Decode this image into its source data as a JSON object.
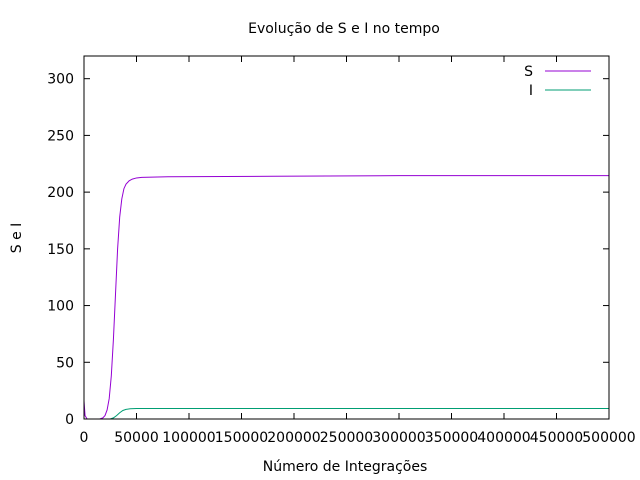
{
  "chart_data": {
    "type": "line",
    "title": "Evolução de S e I no tempo",
    "xlabel": "Número de Integrações",
    "ylabel": "S e I",
    "xlim": [
      0,
      500000
    ],
    "ylim": [
      0,
      320
    ],
    "xticks": [
      0,
      50000,
      100000,
      150000,
      200000,
      250000,
      300000,
      350000,
      400000,
      450000,
      500000
    ],
    "yticks": [
      0,
      50,
      100,
      150,
      200,
      250,
      300
    ],
    "grid": false,
    "legend_position": "top-right",
    "series": [
      {
        "name": "S",
        "color": "#9400d3",
        "points": [
          [
            0,
            16
          ],
          [
            1000,
            3
          ],
          [
            3000,
            0
          ],
          [
            15000,
            0
          ],
          [
            18000,
            1
          ],
          [
            20000,
            3
          ],
          [
            22000,
            8
          ],
          [
            24000,
            18
          ],
          [
            26000,
            38
          ],
          [
            28000,
            70
          ],
          [
            30000,
            110
          ],
          [
            32000,
            150
          ],
          [
            34000,
            178
          ],
          [
            36000,
            194
          ],
          [
            38000,
            203
          ],
          [
            40000,
            207
          ],
          [
            43000,
            210
          ],
          [
            46000,
            211.5
          ],
          [
            50000,
            212.5
          ],
          [
            55000,
            213
          ],
          [
            80000,
            213.5
          ],
          [
            180000,
            214
          ],
          [
            300000,
            214.5
          ],
          [
            500000,
            214.5
          ]
        ]
      },
      {
        "name": "I",
        "color": "#009e73",
        "points": [
          [
            0,
            0
          ],
          [
            25000,
            0
          ],
          [
            28000,
            1
          ],
          [
            31000,
            3
          ],
          [
            34000,
            5.5
          ],
          [
            37000,
            7.5
          ],
          [
            40000,
            8.5
          ],
          [
            44000,
            9
          ],
          [
            50000,
            9.2
          ],
          [
            100000,
            9.3
          ],
          [
            500000,
            9.3
          ]
        ]
      }
    ]
  }
}
